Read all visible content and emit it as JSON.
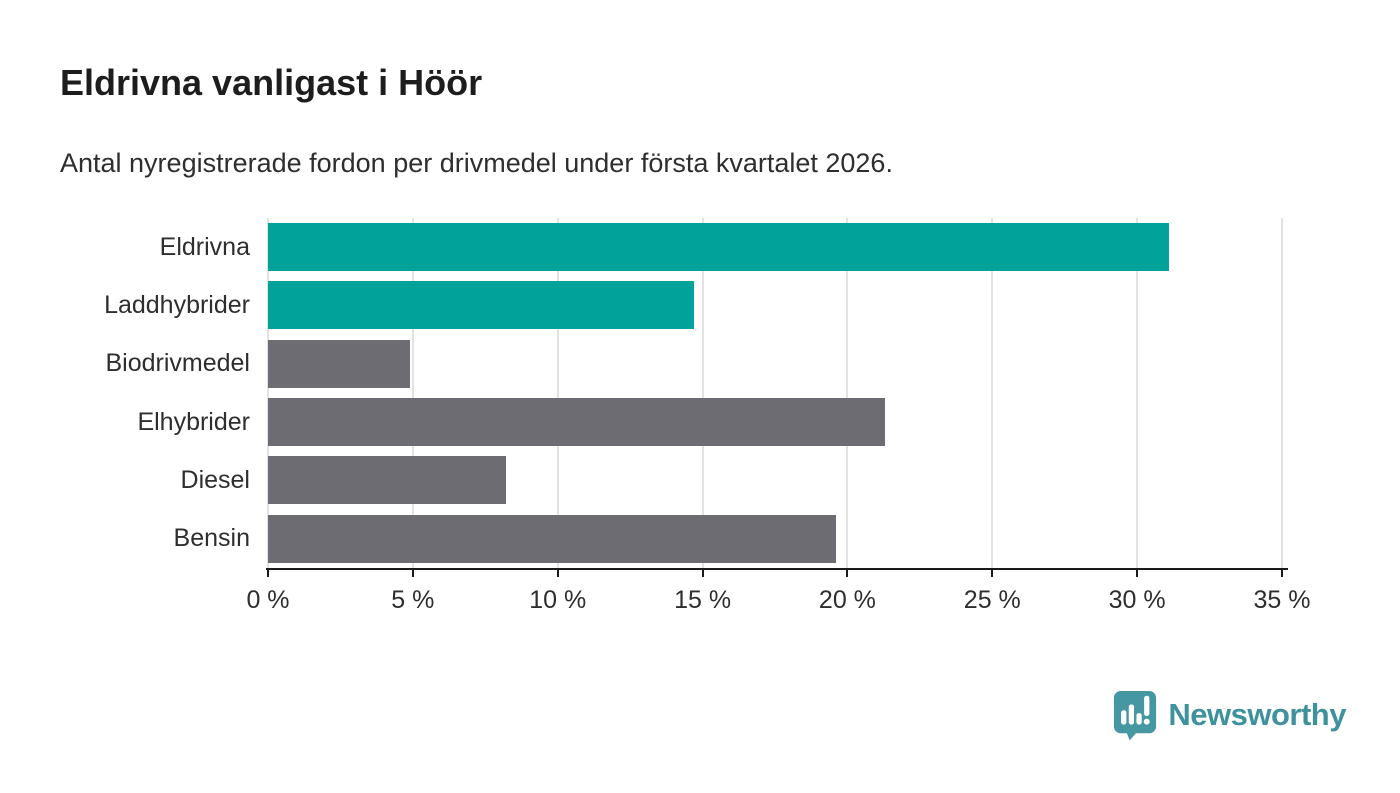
{
  "header": {
    "title": "Eldrivna vanligast i Höör",
    "subtitle": "Antal nyregistrerade fordon per drivmedel under första kvartalet 2026."
  },
  "chart_data": {
    "type": "bar",
    "orientation": "horizontal",
    "title": "Eldrivna vanligast i Höör",
    "subtitle": "Antal nyregistrerade fordon per drivmedel under första kvartalet 2026.",
    "categories": [
      "Eldrivna",
      "Laddhybrider",
      "Biodrivmedel",
      "Elhybrider",
      "Diesel",
      "Bensin"
    ],
    "values": [
      31.1,
      14.7,
      4.9,
      21.3,
      8.2,
      19.6
    ],
    "bar_colors": [
      "#00a29a",
      "#00a29a",
      "#6d6c72",
      "#6d6c72",
      "#6d6c72",
      "#6d6c72"
    ],
    "xlim": [
      0,
      35
    ],
    "xticks": [
      0,
      5,
      10,
      15,
      20,
      25,
      30,
      35
    ],
    "xtick_labels": [
      "0 %",
      "5 %",
      "10 %",
      "15 %",
      "20 %",
      "25 %",
      "30 %",
      "35 %"
    ],
    "xlabel": "",
    "ylabel": "",
    "grid": "vertical-only",
    "legend": "none",
    "colors": {
      "highlight": "#00a29a",
      "default": "#6d6c72",
      "grid": "#e3e3e3",
      "axis": "#1a1a1a"
    }
  },
  "footer": {
    "brand": "Newsworthy",
    "brand_text_color": "#3f929c",
    "badge_color": "#4597a1",
    "badge_icon": "bar-chart-exclamation-pin"
  }
}
